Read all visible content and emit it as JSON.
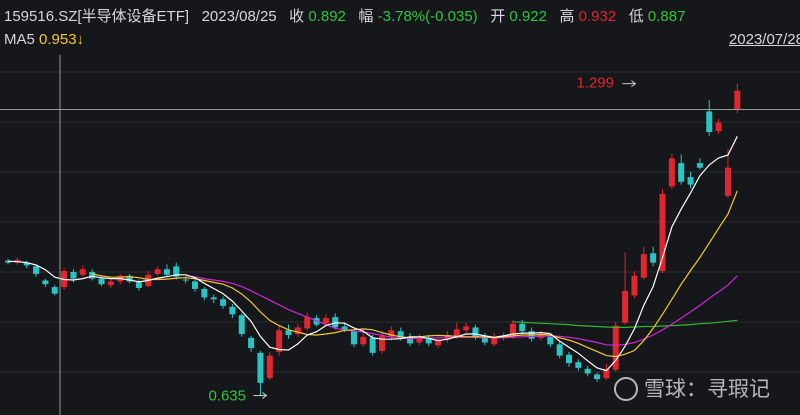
{
  "header": {
    "code": "159516.SZ[半导体设备ETF]",
    "date": "2023/08/25",
    "close_label": "收",
    "close": "0.892",
    "change_label": "幅",
    "change": "-3.78%(-0.035)",
    "open_label": "开",
    "open": "0.922",
    "high_label": "高",
    "high": "0.932",
    "low_label": "低",
    "low": "0.887"
  },
  "ma": {
    "label": "MA5",
    "value": "0.953↓"
  },
  "cursor_date": "2023/07/28",
  "watermark": "雪球：寻瑕记",
  "colors": {
    "up": "#e0262e",
    "down": "#2bc4c4",
    "ma5": "#ffffff",
    "ma10": "#f6c739",
    "ma20": "#d026d6",
    "ma60": "#2fb82f",
    "crosshair": "#9a9a9a",
    "bg": "#16171b",
    "grid": "#2b2c31"
  },
  "chart_data": {
    "type": "candlestick",
    "ylim": [
      0.6,
      1.36
    ],
    "crosshair_price": 1.244,
    "annotations": [
      {
        "label": "1.299",
        "price": 1.299,
        "index": 67
      },
      {
        "label": "0.635",
        "price": 0.635,
        "index": 27
      }
    ],
    "candles": [
      [
        0.922,
        0.918,
        0.926,
        0.914
      ],
      [
        0.918,
        0.924,
        0.928,
        0.914
      ],
      [
        0.918,
        0.912,
        0.922,
        0.906
      ],
      [
        0.91,
        0.894,
        0.914,
        0.888
      ],
      [
        0.88,
        0.872,
        0.884,
        0.866
      ],
      [
        0.866,
        0.852,
        0.87,
        0.848
      ],
      [
        0.866,
        0.9,
        0.906,
        0.86
      ],
      [
        0.898,
        0.884,
        0.904,
        0.876
      ],
      [
        0.892,
        0.904,
        0.912,
        0.888
      ],
      [
        0.898,
        0.884,
        0.904,
        0.88
      ],
      [
        0.884,
        0.872,
        0.89,
        0.868
      ],
      [
        0.87,
        0.878,
        0.884,
        0.864
      ],
      [
        0.878,
        0.89,
        0.894,
        0.872
      ],
      [
        0.89,
        0.878,
        0.894,
        0.874
      ],
      [
        0.876,
        0.864,
        0.882,
        0.858
      ],
      [
        0.868,
        0.892,
        0.9,
        0.866
      ],
      [
        0.894,
        0.904,
        0.91,
        0.89
      ],
      [
        0.904,
        0.892,
        0.914,
        0.888
      ],
      [
        0.91,
        0.888,
        0.918,
        0.882
      ],
      [
        0.882,
        0.88,
        0.888,
        0.874
      ],
      [
        0.878,
        0.862,
        0.884,
        0.856
      ],
      [
        0.862,
        0.844,
        0.866,
        0.838
      ],
      [
        0.844,
        0.84,
        0.85,
        0.832
      ],
      [
        0.84,
        0.826,
        0.846,
        0.82
      ],
      [
        0.824,
        0.808,
        0.83,
        0.8
      ],
      [
        0.806,
        0.766,
        0.81,
        0.76
      ],
      [
        0.758,
        0.736,
        0.762,
        0.728
      ],
      [
        0.726,
        0.662,
        0.73,
        0.635
      ],
      [
        0.672,
        0.72,
        0.728,
        0.668
      ],
      [
        0.728,
        0.774,
        0.784,
        0.72
      ],
      [
        0.774,
        0.764,
        0.786,
        0.756
      ],
      [
        0.766,
        0.78,
        0.788,
        0.76
      ],
      [
        0.778,
        0.802,
        0.812,
        0.772
      ],
      [
        0.8,
        0.786,
        0.806,
        0.782
      ],
      [
        0.788,
        0.8,
        0.808,
        0.782
      ],
      [
        0.802,
        0.78,
        0.81,
        0.776
      ],
      [
        0.782,
        0.776,
        0.79,
        0.77
      ],
      [
        0.772,
        0.744,
        0.776,
        0.738
      ],
      [
        0.744,
        0.76,
        0.768,
        0.738
      ],
      [
        0.758,
        0.726,
        0.764,
        0.72
      ],
      [
        0.73,
        0.762,
        0.772,
        0.724
      ],
      [
        0.76,
        0.774,
        0.782,
        0.752
      ],
      [
        0.772,
        0.758,
        0.78,
        0.752
      ],
      [
        0.76,
        0.746,
        0.768,
        0.74
      ],
      [
        0.748,
        0.758,
        0.766,
        0.742
      ],
      [
        0.758,
        0.746,
        0.764,
        0.74
      ],
      [
        0.742,
        0.752,
        0.76,
        0.736
      ],
      [
        0.754,
        0.764,
        0.772,
        0.748
      ],
      [
        0.76,
        0.776,
        0.79,
        0.756
      ],
      [
        0.774,
        0.782,
        0.79,
        0.768
      ],
      [
        0.78,
        0.76,
        0.786,
        0.754
      ],
      [
        0.762,
        0.748,
        0.768,
        0.742
      ],
      [
        0.744,
        0.76,
        0.768,
        0.74
      ],
      [
        0.758,
        0.762,
        0.77,
        0.752
      ],
      [
        0.76,
        0.788,
        0.796,
        0.756
      ],
      [
        0.788,
        0.772,
        0.796,
        0.766
      ],
      [
        0.772,
        0.756,
        0.78,
        0.75
      ],
      [
        0.758,
        0.764,
        0.772,
        0.752
      ],
      [
        0.76,
        0.744,
        0.766,
        0.738
      ],
      [
        0.744,
        0.72,
        0.75,
        0.714
      ],
      [
        0.722,
        0.704,
        0.728,
        0.696
      ],
      [
        0.706,
        0.694,
        0.712,
        0.688
      ],
      [
        0.692,
        0.682,
        0.698,
        0.676
      ],
      [
        0.68,
        0.67,
        0.684,
        0.664
      ],
      [
        0.672,
        0.692,
        0.702,
        0.668
      ],
      [
        0.69,
        0.784,
        0.792,
        0.686
      ],
      [
        0.79,
        0.858,
        0.94,
        0.786
      ],
      [
        0.848,
        0.89,
        0.9,
        0.842
      ],
      [
        0.886,
        0.936,
        0.952,
        0.882
      ],
      [
        0.938,
        0.918,
        0.952,
        0.91
      ],
      [
        0.9,
        1.064,
        1.074,
        0.896
      ],
      [
        1.08,
        1.14,
        1.15,
        1.074
      ],
      [
        1.13,
        1.09,
        1.148,
        1.084
      ],
      [
        1.1,
        1.084,
        1.112,
        1.076
      ],
      [
        1.13,
        1.12,
        1.14,
        1.116
      ],
      [
        1.24,
        1.196,
        1.264,
        1.188
      ],
      [
        1.198,
        1.216,
        1.224,
        1.192
      ],
      [
        1.06,
        1.12,
        1.16,
        1.056
      ],
      [
        1.244,
        1.284,
        1.299,
        1.236
      ]
    ],
    "ma5": [
      0.921,
      0.92,
      0.918,
      0.913,
      0.903,
      0.887,
      0.882,
      0.881,
      0.884,
      0.889,
      0.886,
      0.884,
      0.884,
      0.881,
      0.877,
      0.88,
      0.885,
      0.888,
      0.892,
      0.892,
      0.886,
      0.874,
      0.863,
      0.852,
      0.836,
      0.815,
      0.793,
      0.761,
      0.738,
      0.733,
      0.732,
      0.745,
      0.764,
      0.771,
      0.784,
      0.79,
      0.789,
      0.779,
      0.772,
      0.758,
      0.755,
      0.755,
      0.756,
      0.76,
      0.76,
      0.757,
      0.752,
      0.755,
      0.76,
      0.766,
      0.766,
      0.762,
      0.759,
      0.762,
      0.766,
      0.768,
      0.768,
      0.769,
      0.767,
      0.751,
      0.738,
      0.725,
      0.709,
      0.694,
      0.688,
      0.71,
      0.74,
      0.777,
      0.827,
      0.867,
      0.929,
      0.994,
      1.032,
      1.066,
      1.103,
      1.126,
      1.141,
      1.147,
      1.187
    ],
    "ma10": [
      null,
      null,
      null,
      null,
      null,
      null,
      null,
      null,
      null,
      0.894,
      0.89,
      0.887,
      0.887,
      0.888,
      0.886,
      0.882,
      0.882,
      0.883,
      0.885,
      0.886,
      0.884,
      0.88,
      0.876,
      0.872,
      0.864,
      0.851,
      0.834,
      0.813,
      0.795,
      0.784,
      0.775,
      0.77,
      0.765,
      0.764,
      0.766,
      0.769,
      0.774,
      0.775,
      0.777,
      0.775,
      0.769,
      0.764,
      0.76,
      0.758,
      0.76,
      0.762,
      0.763,
      0.762,
      0.761,
      0.76,
      0.76,
      0.76,
      0.758,
      0.76,
      0.762,
      0.764,
      0.764,
      0.765,
      0.764,
      0.758,
      0.753,
      0.746,
      0.737,
      0.729,
      0.72,
      0.718,
      0.723,
      0.731,
      0.752,
      0.778,
      0.808,
      0.84,
      0.872,
      0.901,
      0.929,
      0.96,
      0.991,
      1.021,
      1.071
    ],
    "ma20": [
      null,
      null,
      null,
      null,
      null,
      null,
      null,
      null,
      null,
      null,
      null,
      null,
      null,
      null,
      null,
      null,
      null,
      null,
      null,
      0.89,
      0.888,
      0.884,
      0.881,
      0.878,
      0.874,
      0.867,
      0.858,
      0.848,
      0.838,
      0.828,
      0.818,
      0.81,
      0.802,
      0.794,
      0.786,
      0.778,
      0.775,
      0.772,
      0.77,
      0.767,
      0.763,
      0.759,
      0.757,
      0.756,
      0.757,
      0.757,
      0.758,
      0.758,
      0.759,
      0.759,
      0.759,
      0.758,
      0.758,
      0.758,
      0.759,
      0.76,
      0.761,
      0.761,
      0.762,
      0.761,
      0.759,
      0.756,
      0.752,
      0.748,
      0.743,
      0.742,
      0.744,
      0.748,
      0.755,
      0.764,
      0.775,
      0.787,
      0.8,
      0.813,
      0.827,
      0.842,
      0.856,
      0.87,
      0.89
    ],
    "ma60": [
      null,
      null,
      null,
      null,
      null,
      null,
      null,
      null,
      null,
      null,
      null,
      null,
      null,
      null,
      null,
      null,
      null,
      null,
      null,
      null,
      null,
      null,
      null,
      null,
      null,
      null,
      null,
      null,
      null,
      null,
      null,
      null,
      null,
      null,
      null,
      null,
      null,
      null,
      null,
      null,
      null,
      null,
      null,
      null,
      null,
      null,
      null,
      null,
      null,
      null,
      null,
      null,
      null,
      null,
      0.792,
      0.791,
      0.79,
      0.789,
      0.788,
      0.787,
      0.786,
      0.784,
      0.783,
      0.782,
      0.781,
      0.78,
      0.78,
      0.781,
      0.782,
      0.782,
      0.783,
      0.784,
      0.785,
      0.786,
      0.788,
      0.789,
      0.791,
      0.793,
      0.795
    ]
  }
}
